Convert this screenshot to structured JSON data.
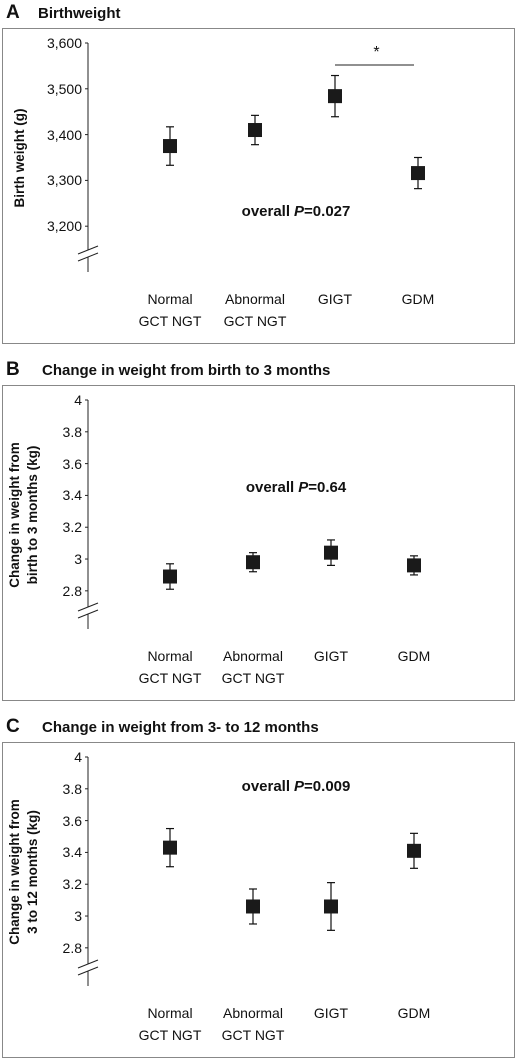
{
  "chart_data": [
    {
      "type": "errorbar",
      "panel": "A",
      "title": "Birthweight",
      "y_label": "Birth weight (g)",
      "categories": [
        "Normal\nGCT NGT",
        "Abnormal\nGCT NGT",
        "GIGT",
        "GDM"
      ],
      "series": [
        {
          "color": "#1a1a1a",
          "values": [
            3375,
            3410,
            3484,
            3316
          ],
          "errors": [
            42,
            32,
            45,
            34
          ]
        }
      ],
      "ylim": [
        3100,
        3600
      ],
      "yticks": [
        {
          "value": 3200,
          "label": "3,200"
        },
        {
          "value": 3300,
          "label": "3,300"
        },
        {
          "value": 3400,
          "label": "3,400"
        },
        {
          "value": 3500,
          "label": "3,500"
        },
        {
          "value": 3600,
          "label": "3,600"
        }
      ],
      "annotation": [
        "overall",
        "P",
        "=0.027"
      ],
      "significance": "*"
    },
    {
      "type": "errorbar",
      "panel": "B",
      "title": "Change in weight from birth to 3 months",
      "y_label": "Change in weight from\nbirth to 3 months (kg)",
      "categories": [
        "Normal\nGCT NGT",
        "Abnormal\nGCT NGT",
        "GIGT",
        "GDM"
      ],
      "series": [
        {
          "color": "#1a1a1a",
          "values": [
            2.89,
            2.98,
            3.04,
            2.96
          ],
          "errors": [
            0.08,
            0.06,
            0.08,
            0.06
          ]
        }
      ],
      "ylim": [
        2.56,
        4
      ],
      "yticks": [
        2.8,
        3,
        3.2,
        3.4,
        3.6,
        3.8,
        4
      ],
      "annotation": [
        "overall",
        "P",
        "=0.64"
      ]
    },
    {
      "type": "errorbar",
      "panel": "C",
      "title": "Change in weight from 3- to 12 months",
      "y_label": "Change in weight from\n3 to 12 months (kg)",
      "categories": [
        "Normal\nGCT NGT",
        "Abnormal\nGCT NGT",
        "GIGT",
        "GDM"
      ],
      "series": [
        {
          "color": "#1a1a1a",
          "values": [
            3.43,
            3.06,
            3.06,
            3.41
          ],
          "errors": [
            0.12,
            0.11,
            0.15,
            0.11
          ]
        }
      ],
      "ylim": [
        2.56,
        4
      ],
      "yticks": [
        2.8,
        3,
        3.2,
        3.4,
        3.6,
        3.8,
        4
      ],
      "annotation": [
        "overall",
        "P",
        "=0.009"
      ]
    }
  ]
}
